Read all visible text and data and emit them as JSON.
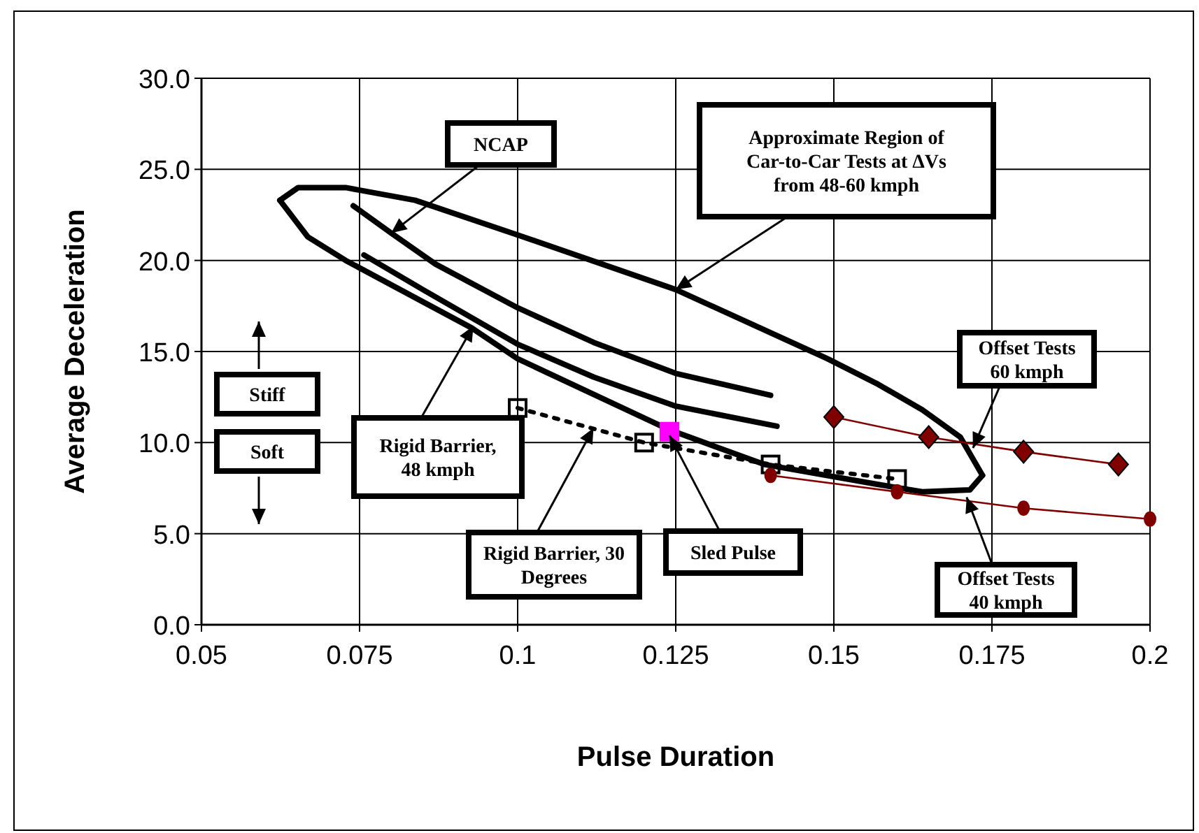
{
  "chart_data": {
    "type": "line",
    "xlabel": "Pulse Duration",
    "ylabel": "Average Deceleration",
    "xlim": [
      0.05,
      0.2
    ],
    "ylim": [
      0,
      30
    ],
    "xticks": [
      0.05,
      0.075,
      0.1,
      0.125,
      0.15,
      0.175,
      0.2
    ],
    "yticks": [
      {
        "value": 0,
        "label": "0.0"
      },
      {
        "value": 5,
        "label": "5.0"
      },
      {
        "value": 10,
        "label": "10.0"
      },
      {
        "value": 15,
        "label": "15.0"
      },
      {
        "value": 20,
        "label": "20.0"
      },
      {
        "value": 25,
        "label": "25.0"
      },
      {
        "value": 30,
        "label": "30.0"
      }
    ],
    "grid": true,
    "series": [
      {
        "color": "#000000",
        "marker": "none",
        "line_style": "solid",
        "x": [
          0.0624,
          0.0653,
          0.0728,
          0.0838,
          0.1,
          0.125,
          0.1465,
          0.149,
          0.157,
          0.164,
          0.17,
          0.1735
        ],
        "values": [
          23.3,
          24.0,
          24.0,
          23.3,
          21.4,
          18.4,
          15.0,
          14.6,
          13.2,
          11.8,
          10.3,
          8.2
        ]
      },
      {
        "color": "#000000",
        "marker": "none",
        "line_style": "solid",
        "x": [
          0.0624,
          0.0668,
          0.0728,
          0.0927,
          0.1,
          0.124,
          0.139,
          0.157,
          0.164,
          0.1715,
          0.1735
        ],
        "values": [
          23.3,
          21.3,
          20.0,
          16.3,
          14.6,
          10.7,
          8.8,
          7.7,
          7.3,
          7.4,
          8.2
        ]
      },
      {
        "color": "#000000",
        "marker": "none",
        "line_style": "solid",
        "x": [
          0.074,
          0.08,
          0.087,
          0.1,
          0.112,
          0.125,
          0.14
        ],
        "values": [
          23.0,
          21.5,
          19.8,
          17.4,
          15.5,
          13.8,
          12.6
        ]
      },
      {
        "color": "#000000",
        "marker": "none",
        "line_style": "solid",
        "x": [
          0.0757,
          0.085,
          0.1,
          0.112,
          0.125,
          0.141
        ],
        "values": [
          20.3,
          18.4,
          15.4,
          13.6,
          12.0,
          10.9
        ]
      },
      {
        "color": "#000000",
        "marker": "square",
        "line_style": "dotted",
        "x": [
          0.1,
          0.12,
          0.14,
          0.16
        ],
        "values": [
          11.9,
          10.0,
          8.8,
          8.0
        ]
      },
      {
        "type": "scatter",
        "color": "#ff00ff",
        "marker": "square",
        "x": [
          0.124
        ],
        "values": [
          10.6
        ]
      },
      {
        "color": "#800000",
        "marker": "diamond",
        "line_style": "solid",
        "x": [
          0.15,
          0.165,
          0.18,
          0.195
        ],
        "values": [
          11.4,
          10.3,
          9.5,
          8.8
        ]
      },
      {
        "color": "#800000",
        "marker": "circle",
        "line_style": "solid",
        "x": [
          0.14,
          0.16,
          0.18,
          0.2
        ],
        "values": [
          8.2,
          7.3,
          6.4,
          5.8
        ]
      }
    ],
    "annotations": [
      {
        "text": "NCAP",
        "x": 0.08,
        "y": 21.5
      },
      {
        "text": "Approximate Region of Car-to-Car Tests at ΔVs from 48-60 kmph",
        "x": 0.125,
        "y": 18.4
      },
      {
        "text": "Rigid Barrier, 48 kmph",
        "x": 0.093,
        "y": 16.4
      },
      {
        "text": "Rigid Barrier, 30 Degrees",
        "x": 0.112,
        "y": 10.8
      },
      {
        "text": "Sled Pulse",
        "x": 0.124,
        "y": 10.4
      },
      {
        "text": "Offset Tests 60 kmph",
        "x": 0.172,
        "y": 9.7
      },
      {
        "text": "Offset Tests 40 kmph",
        "x": 0.171,
        "y": 7.0
      },
      "Stiff",
      "Soft"
    ]
  }
}
